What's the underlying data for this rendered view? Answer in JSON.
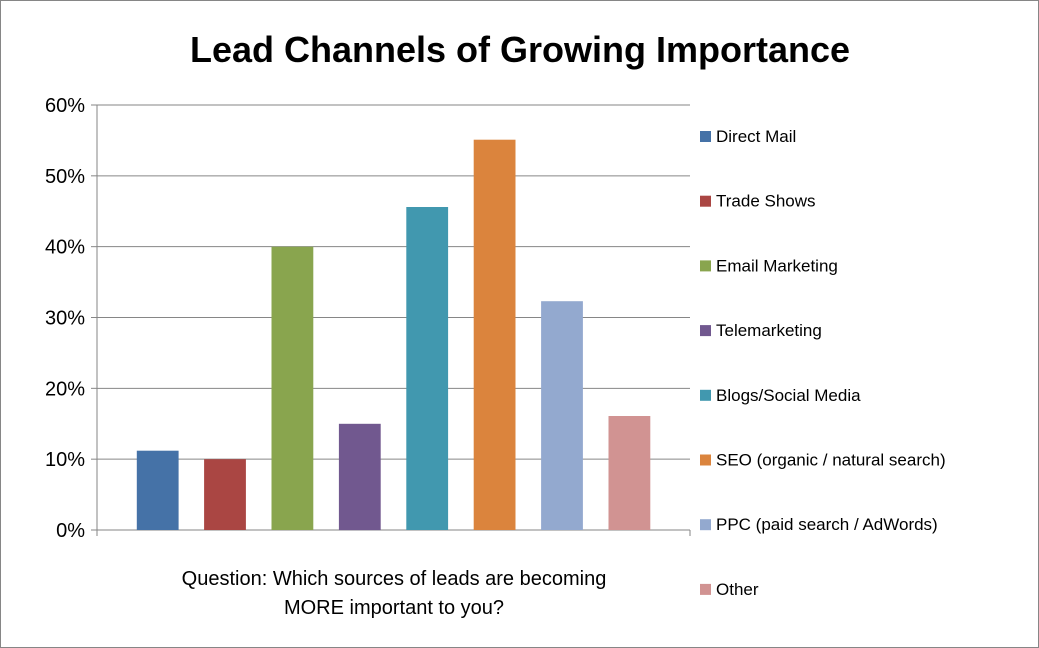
{
  "chart_data": {
    "type": "bar",
    "title": "Lead Channels of Growing Importance",
    "xlabel_lines": [
      "Question: Which sources of leads are becoming",
      "MORE important to you?"
    ],
    "ylabel": "",
    "ylim": [
      0,
      60
    ],
    "y_tick_values": [
      0,
      10,
      20,
      30,
      40,
      50,
      60
    ],
    "y_tick_labels": [
      "0%",
      "10%",
      "20%",
      "30%",
      "40%",
      "50%",
      "60%"
    ],
    "grid": true,
    "legend_position": "right",
    "series": [
      {
        "name": "Direct Mail",
        "value": 11.2,
        "color": "#4572A7"
      },
      {
        "name": "Trade Shows",
        "value": 10.0,
        "color": "#AA4643"
      },
      {
        "name": "Email Marketing",
        "value": 40.0,
        "color": "#89A54E"
      },
      {
        "name": "Telemarketing",
        "value": 15.0,
        "color": "#71588F"
      },
      {
        "name": "Blogs/Social Media",
        "value": 45.6,
        "color": "#4198AF"
      },
      {
        "name": "SEO (organic / natural search)",
        "value": 55.1,
        "color": "#DB843D"
      },
      {
        "name": "PPC (paid search / AdWords)",
        "value": 32.3,
        "color": "#93A9CF"
      },
      {
        "name": "Other",
        "value": 16.1,
        "color": "#D19392"
      }
    ]
  }
}
